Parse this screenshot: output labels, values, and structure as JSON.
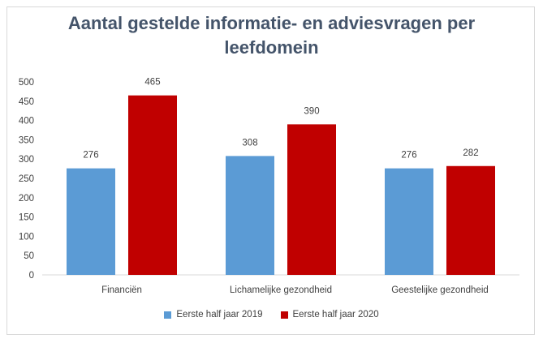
{
  "chart_data": {
    "type": "bar",
    "title_line1": "Aantal gestelde informatie- en adviesvragen per",
    "title_line2": "leefdomein",
    "categories": [
      "Financiën",
      "Lichamelijke gezondheid",
      "Geestelijke gezondheid"
    ],
    "series": [
      {
        "name": "Eerste half jaar  2019",
        "values": [
          276,
          308,
          276
        ],
        "color": "#5b9bd5"
      },
      {
        "name": "Eerste half jaar 2020",
        "values": [
          465,
          390,
          282
        ],
        "color": "#c00000"
      }
    ],
    "ylim": [
      0,
      500
    ],
    "yticks": [
      0,
      50,
      100,
      150,
      200,
      250,
      300,
      350,
      400,
      450,
      500
    ],
    "grid": false,
    "legend": "bottom"
  }
}
